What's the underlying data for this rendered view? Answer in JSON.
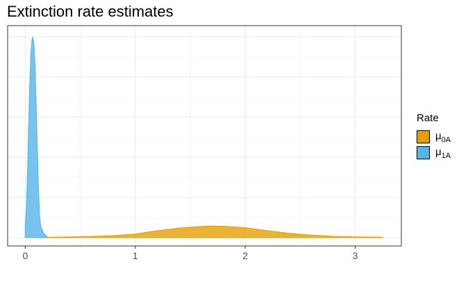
{
  "chart_data": {
    "type": "area",
    "title": "Extinction rate estimates",
    "xlabel": "",
    "ylabel": "",
    "xlim": [
      -0.16,
      3.42
    ],
    "ylim": [
      0,
      1.0
    ],
    "x_ticks": [
      "0",
      "1",
      "2",
      "3"
    ],
    "grid": true,
    "legend": {
      "title": "Rate",
      "placement": "right"
    },
    "series": [
      {
        "name": "μ0A",
        "symbol": "μ",
        "subscript": "0A",
        "color": "#E69F00",
        "x": [
          0.1,
          0.5,
          0.8,
          1.0,
          1.2,
          1.4,
          1.6,
          1.7,
          1.8,
          2.0,
          2.2,
          2.4,
          2.6,
          2.8,
          3.0,
          3.2,
          3.25
        ],
        "y": [
          0.0,
          0.005,
          0.01,
          0.018,
          0.035,
          0.048,
          0.056,
          0.058,
          0.057,
          0.05,
          0.035,
          0.022,
          0.013,
          0.007,
          0.004,
          0.003,
          0.002
        ]
      },
      {
        "name": "μ1A",
        "symbol": "μ",
        "subscript": "1A",
        "color": "#56B4E9",
        "x": [
          0.0,
          0.01,
          0.02,
          0.03,
          0.04,
          0.05,
          0.06,
          0.07,
          0.08,
          0.09,
          0.1,
          0.11,
          0.12,
          0.13,
          0.14,
          0.15,
          0.17,
          0.2
        ],
        "y": [
          0.06,
          0.15,
          0.32,
          0.55,
          0.75,
          0.91,
          0.98,
          1.0,
          0.96,
          0.85,
          0.66,
          0.45,
          0.26,
          0.12,
          0.06,
          0.045,
          0.02,
          0.005
        ]
      }
    ]
  }
}
